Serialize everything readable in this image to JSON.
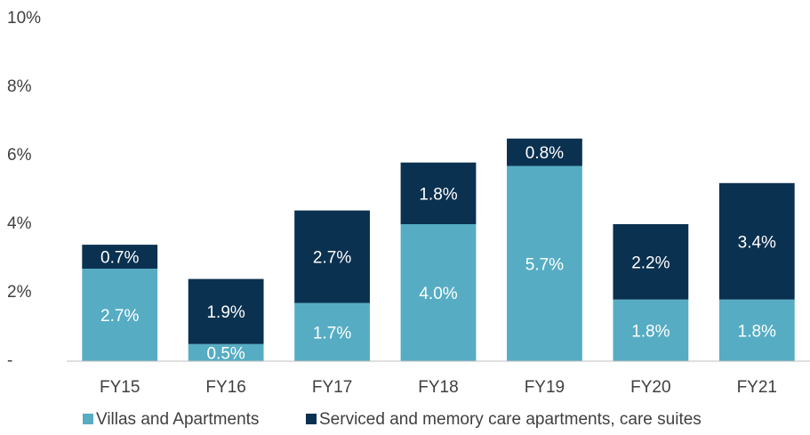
{
  "chart_data": {
    "type": "stacked_bar",
    "categories": [
      "FY15",
      "FY16",
      "FY17",
      "FY18",
      "FY19",
      "FY20",
      "FY21"
    ],
    "series": [
      {
        "name": "Villas and Apartments",
        "color": "#56adc3",
        "values": [
          2.7,
          0.5,
          1.7,
          4.0,
          5.7,
          1.8,
          1.8
        ],
        "value_labels": [
          "2.7%",
          "0.5%",
          "1.7%",
          "4.0%",
          "5.7%",
          "1.8%",
          "1.8%"
        ]
      },
      {
        "name": "Serviced and memory care apartments, care suites",
        "color": "#0b3150",
        "values": [
          0.7,
          1.9,
          2.7,
          1.8,
          0.8,
          2.2,
          3.4
        ],
        "value_labels": [
          "0.7%",
          "1.9%",
          "2.7%",
          "1.8%",
          "0.8%",
          "2.2%",
          "3.4%"
        ]
      }
    ],
    "ylim": [
      0,
      10
    ],
    "yticks": [
      {
        "value": 0,
        "label": "-"
      },
      {
        "value": 2,
        "label": "2%"
      },
      {
        "value": 4,
        "label": "4%"
      },
      {
        "value": 6,
        "label": "6%"
      },
      {
        "value": 8,
        "label": "8%"
      },
      {
        "value": 10,
        "label": "10%"
      }
    ],
    "legend": "bottom"
  }
}
